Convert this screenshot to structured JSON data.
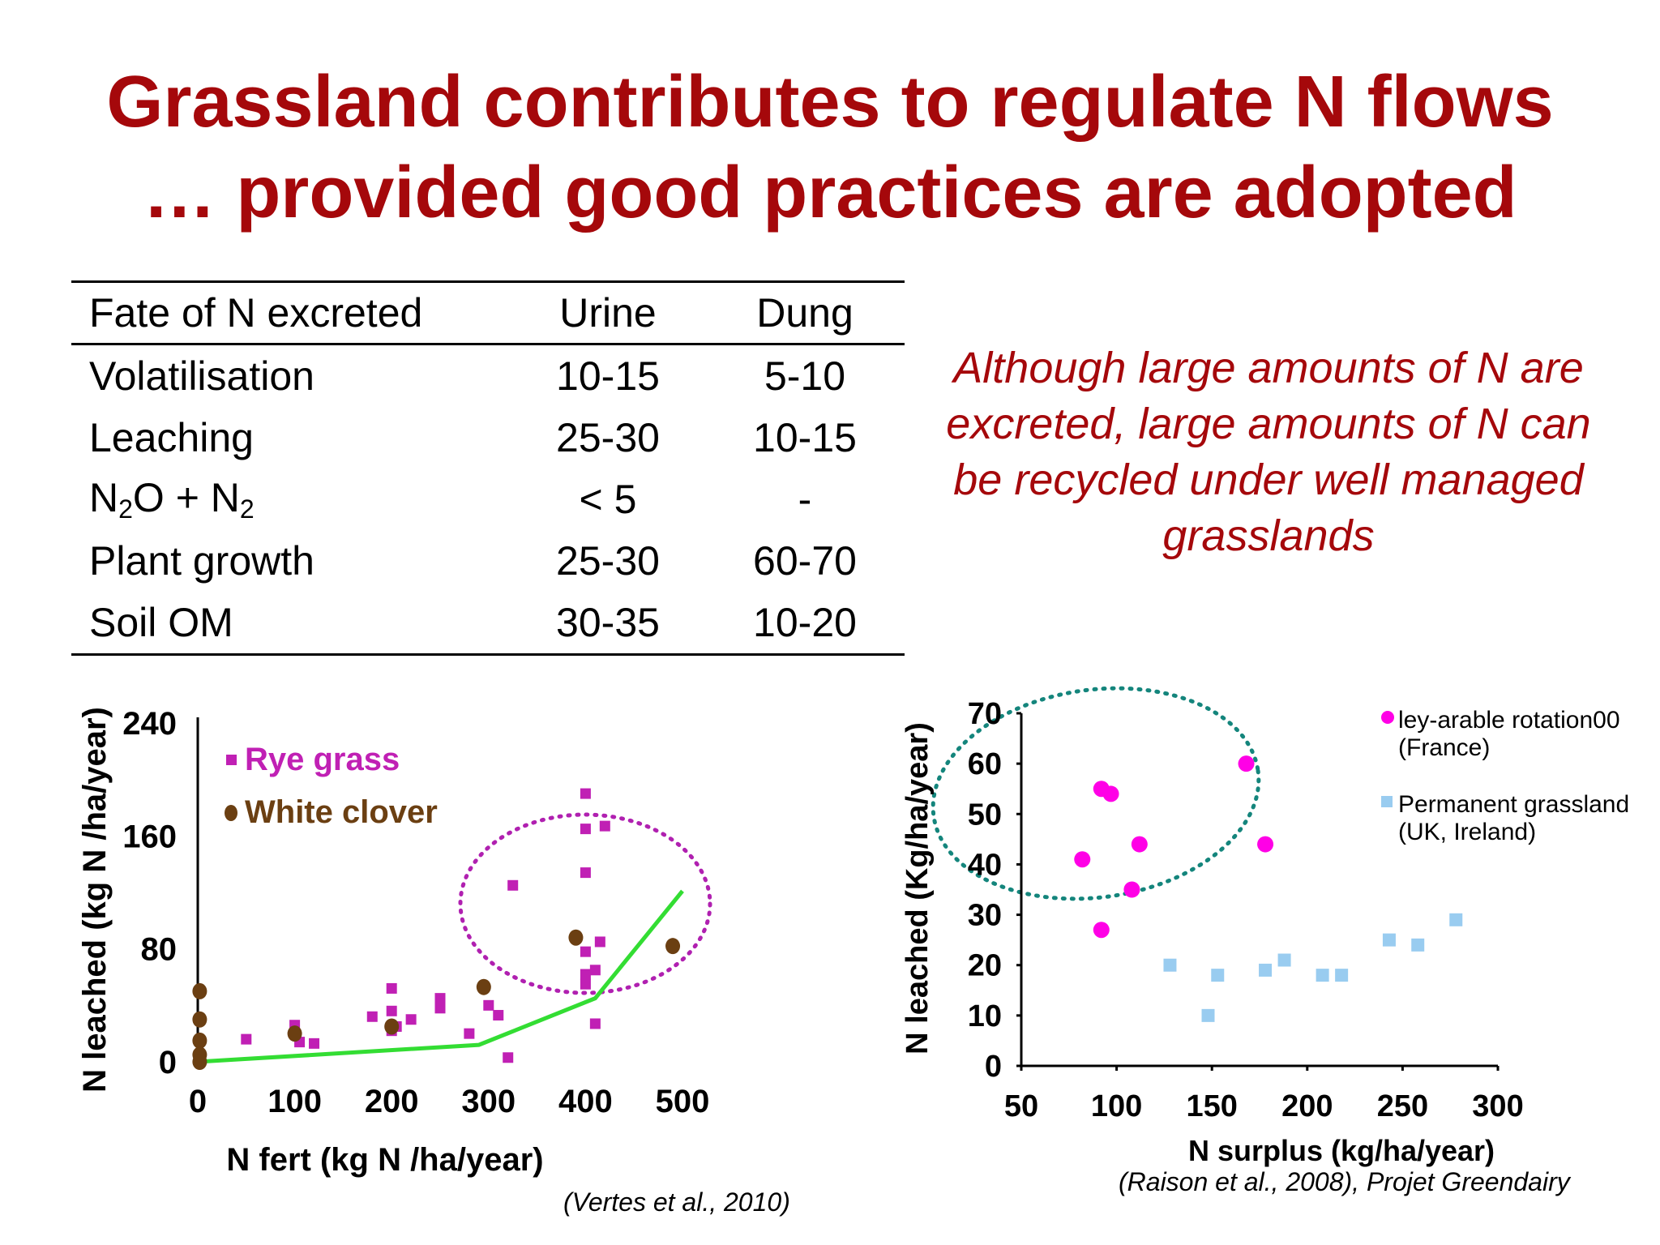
{
  "slide": {
    "title_line1": "Grassland contributes to regulate N flows",
    "title_line2": "… provided good practices are adopted",
    "callout": "Although large amounts of N are excreted, large amounts of N can be recycled under well managed grasslands"
  },
  "table": {
    "headers": [
      "Fate of N excreted",
      "Urine",
      "Dung"
    ],
    "rows": [
      [
        "Volatilisation",
        "10-15",
        "5-10"
      ],
      [
        "Leaching",
        "25-30",
        "10-15"
      ],
      [
        "N2O + N2",
        "< 5",
        "-"
      ],
      [
        "Plant growth",
        "25-30",
        "60-70"
      ],
      [
        "Soil OM",
        "30-35",
        "10-20"
      ]
    ],
    "n2o_parts": {
      "n1": "N",
      "s1": "2",
      "mid": "O + N",
      "s2": "2"
    }
  },
  "colors": {
    "title_red": "#a5080b",
    "rye": "#c020b4",
    "clover": "#6b3f12",
    "trend": "#33dd33",
    "ley": "#ff00e6",
    "permanent": "#99ccf0",
    "ellipse_left": "#b020b0",
    "ellipse_right": "#14857c"
  },
  "chart_data": [
    {
      "type": "scatter",
      "xlabel": "N fert (kg N /ha/year)",
      "ylabel": "N leached (kg N /ha/year)",
      "xlim": [
        0,
        500
      ],
      "ylim": [
        0,
        240
      ],
      "xticks": [
        0,
        100,
        200,
        300,
        400,
        500
      ],
      "yticks": [
        0,
        80,
        160,
        240
      ],
      "legend_position": "top-left",
      "citation": "(Vertes et al., 2010)",
      "series": [
        {
          "name": "Rye grass",
          "marker": "square",
          "color": "#c020b4",
          "points": [
            [
              50,
              16
            ],
            [
              100,
              26
            ],
            [
              105,
              14
            ],
            [
              120,
              13
            ],
            [
              180,
              32
            ],
            [
              200,
              52
            ],
            [
              200,
              36
            ],
            [
              200,
              22
            ],
            [
              205,
              25
            ],
            [
              220,
              30
            ],
            [
              250,
              38
            ],
            [
              250,
              43
            ],
            [
              250,
              45
            ],
            [
              280,
              20
            ],
            [
              300,
              40
            ],
            [
              310,
              33
            ],
            [
              320,
              3
            ],
            [
              325,
              125
            ],
            [
              400,
              190
            ],
            [
              400,
              165
            ],
            [
              400,
              134
            ],
            [
              400,
              78
            ],
            [
              400,
              62
            ],
            [
              400,
              55
            ],
            [
              410,
              65
            ],
            [
              415,
              85
            ],
            [
              410,
              27
            ],
            [
              420,
              167
            ]
          ]
        },
        {
          "name": "White clover",
          "marker": "circle",
          "color": "#6b3f12",
          "points": [
            [
              2,
              50
            ],
            [
              2,
              30
            ],
            [
              2,
              15
            ],
            [
              2,
              5
            ],
            [
              2,
              0
            ],
            [
              100,
              20
            ],
            [
              200,
              25
            ],
            [
              295,
              53
            ],
            [
              390,
              88
            ],
            [
              490,
              82
            ]
          ]
        },
        {
          "name": "trend",
          "marker": "line",
          "color": "#33dd33",
          "points": [
            [
              0,
              0
            ],
            [
              290,
              12
            ],
            [
              410,
              45
            ],
            [
              500,
              121
            ]
          ]
        }
      ]
    },
    {
      "type": "scatter",
      "xlabel": "N surplus (kg/ha/year)",
      "ylabel": "N leached  (Kg/ha/year)",
      "xlim": [
        50,
        300
      ],
      "ylim": [
        0,
        70
      ],
      "xticks": [
        50,
        100,
        150,
        200,
        250,
        300
      ],
      "yticks": [
        0,
        10,
        20,
        30,
        40,
        50,
        60,
        70
      ],
      "legend_position": "top-right",
      "citation": "(Raison et al., 2008), Projet Greendairy",
      "series": [
        {
          "name": "ley-arable rotation00",
          "name_line2": "(France)",
          "marker": "circle",
          "color": "#ff00e6",
          "points": [
            [
              82,
              41
            ],
            [
              92,
              55
            ],
            [
              97,
              54
            ],
            [
              92,
              27
            ],
            [
              108,
              35
            ],
            [
              112,
              44
            ],
            [
              168,
              60
            ],
            [
              178,
              44
            ]
          ]
        },
        {
          "name": "Permanent grassland",
          "name_line2": "(UK, Ireland)",
          "marker": "square",
          "color": "#99ccf0",
          "points": [
            [
              128,
              20
            ],
            [
              148,
              10
            ],
            [
              153,
              18
            ],
            [
              178,
              19
            ],
            [
              188,
              21
            ],
            [
              208,
              18
            ],
            [
              218,
              18
            ],
            [
              243,
              25
            ],
            [
              258,
              24
            ],
            [
              278,
              29
            ]
          ]
        }
      ]
    }
  ]
}
